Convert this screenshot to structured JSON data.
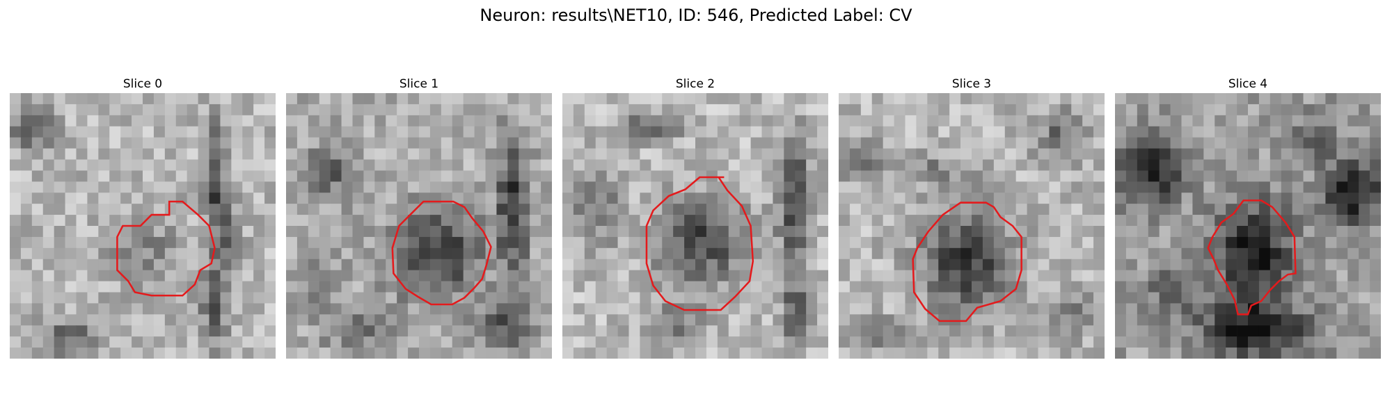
{
  "figure": {
    "title": "Neuron: results\\NET10, ID: 546, Predicted Label: CV"
  },
  "slices": [
    {
      "title": "Slice 0",
      "label": "Slice 0",
      "contour_color": "#e41a1c",
      "contour": [
        [
          14.4,
          11.0
        ],
        [
          12.8,
          11.0
        ],
        [
          11.8,
          12.0
        ],
        [
          10.2,
          12.0
        ],
        [
          9.7,
          13.0
        ],
        [
          9.7,
          16.0
        ],
        [
          10.7,
          17.0
        ],
        [
          11.3,
          18.0
        ],
        [
          12.8,
          18.3
        ],
        [
          15.6,
          18.3
        ],
        [
          16.7,
          17.3
        ],
        [
          17.2,
          16.0
        ],
        [
          18.2,
          15.4
        ],
        [
          18.5,
          14.0
        ],
        [
          18.0,
          12.0
        ],
        [
          17.0,
          11.0
        ],
        [
          15.6,
          9.8
        ],
        [
          14.4,
          9.8
        ]
      ]
    },
    {
      "title": "Slice 1",
      "label": "Slice 1",
      "contour_color": "#e41a1c",
      "contour": [
        [
          14.6,
          9.8
        ],
        [
          12.4,
          9.8
        ],
        [
          11.2,
          11.0
        ],
        [
          10.2,
          12.0
        ],
        [
          9.6,
          14.0
        ],
        [
          9.7,
          16.3
        ],
        [
          10.8,
          17.7
        ],
        [
          11.9,
          18.4
        ],
        [
          13.1,
          19.1
        ],
        [
          15.0,
          19.1
        ],
        [
          16.1,
          18.5
        ],
        [
          17.0,
          17.6
        ],
        [
          17.7,
          16.8
        ],
        [
          18.1,
          15.5
        ],
        [
          18.5,
          13.9
        ],
        [
          17.8,
          12.5
        ],
        [
          16.8,
          11.3
        ],
        [
          16.1,
          10.3
        ],
        [
          15.1,
          9.8
        ]
      ]
    },
    {
      "title": "Slice 2",
      "label": "Slice 2",
      "contour_color": "#e41a1c",
      "contour": [
        [
          14.6,
          7.6
        ],
        [
          12.4,
          7.6
        ],
        [
          11.1,
          8.7
        ],
        [
          9.6,
          9.3
        ],
        [
          8.2,
          10.6
        ],
        [
          7.6,
          12.0
        ],
        [
          7.6,
          15.4
        ],
        [
          8.2,
          17.4
        ],
        [
          9.3,
          18.8
        ],
        [
          11.0,
          19.6
        ],
        [
          14.3,
          19.6
        ],
        [
          15.6,
          18.4
        ],
        [
          16.9,
          17.0
        ],
        [
          17.2,
          15.2
        ],
        [
          17.0,
          12.0
        ],
        [
          16.2,
          10.2
        ],
        [
          14.9,
          8.8
        ],
        [
          14.1,
          7.6
        ]
      ]
    },
    {
      "title": "Slice 3",
      "label": "Slice 3",
      "contour_color": "#e41a1c",
      "contour": [
        [
          13.3,
          9.9
        ],
        [
          11.0,
          9.9
        ],
        [
          9.4,
          11.0
        ],
        [
          8.1,
          12.5
        ],
        [
          7.1,
          14.0
        ],
        [
          6.7,
          15.0
        ],
        [
          6.8,
          18.0
        ],
        [
          7.8,
          19.5
        ],
        [
          9.1,
          20.6
        ],
        [
          11.5,
          20.6
        ],
        [
          12.5,
          19.4
        ],
        [
          14.6,
          18.8
        ],
        [
          16.0,
          17.7
        ],
        [
          16.5,
          16.0
        ],
        [
          16.5,
          13.0
        ],
        [
          15.7,
          12.0
        ],
        [
          14.6,
          11.2
        ],
        [
          14.0,
          10.3
        ]
      ]
    },
    {
      "title": "Slice 4",
      "label": "Slice 4",
      "contour_color": "#e41a1c",
      "contour": [
        [
          13.2,
          9.7
        ],
        [
          11.6,
          9.7
        ],
        [
          10.7,
          10.9
        ],
        [
          9.6,
          11.7
        ],
        [
          8.8,
          13.0
        ],
        [
          8.4,
          14.0
        ],
        [
          8.9,
          15.0
        ],
        [
          9.3,
          16.0
        ],
        [
          10.1,
          17.3
        ],
        [
          10.8,
          18.7
        ],
        [
          11.1,
          20.0
        ],
        [
          12.0,
          20.0
        ],
        [
          12.3,
          19.2
        ],
        [
          13.2,
          18.8
        ],
        [
          14.0,
          17.8
        ],
        [
          14.8,
          17.0
        ],
        [
          15.6,
          16.4
        ],
        [
          16.3,
          16.3
        ],
        [
          16.2,
          13.0
        ],
        [
          15.4,
          11.7
        ],
        [
          14.2,
          10.3
        ]
      ]
    }
  ]
}
